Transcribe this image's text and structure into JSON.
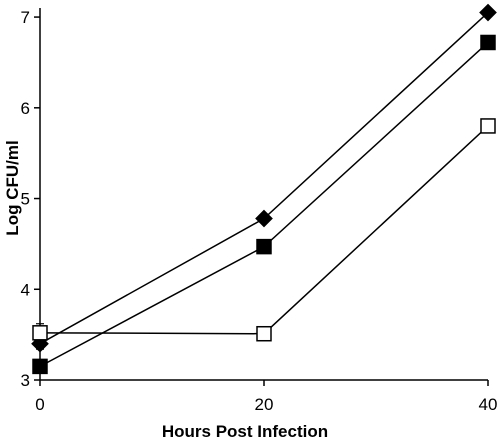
{
  "chart_data": {
    "type": "line",
    "title": "",
    "xlabel": "Hours Post Infection",
    "ylabel": "Log CFU/ml",
    "x": [
      0,
      20,
      40
    ],
    "xticks": [
      "0",
      "20",
      "40"
    ],
    "yticks": [
      "3",
      "4",
      "5",
      "6",
      "7"
    ],
    "xlim": [
      0,
      40
    ],
    "ylim": [
      3,
      7.1
    ],
    "grid": false,
    "series": [
      {
        "marker": "diamond",
        "fill": "#000000",
        "values": [
          3.4,
          4.78,
          7.05
        ],
        "err": [
          0.06,
          0.03,
          0.03
        ]
      },
      {
        "marker": "square",
        "fill": "#000000",
        "values": [
          3.15,
          4.47,
          6.72
        ],
        "err": [
          0.04,
          0.03,
          0.06
        ]
      },
      {
        "marker": "square",
        "fill": "#ffffff",
        "values": [
          3.52,
          3.51,
          5.8
        ],
        "err": [
          0.1,
          0.04,
          0.04
        ]
      }
    ]
  }
}
